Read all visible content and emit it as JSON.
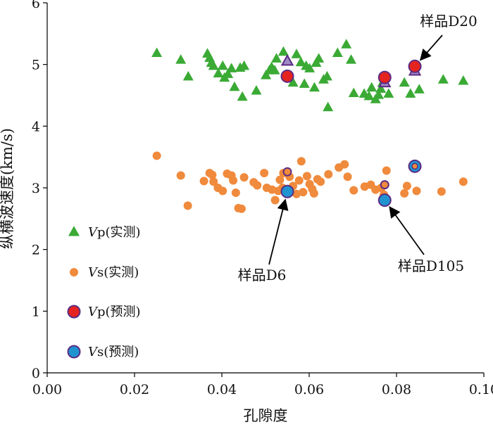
{
  "chart_data": {
    "type": "scatter",
    "xlabel": "孔隙度",
    "ylabel": "纵横波速度(km/s)",
    "xlim": [
      0.0,
      0.1
    ],
    "ylim": [
      0,
      6
    ],
    "x_ticks": [
      "0.00",
      "0.02",
      "0.04",
      "0.06",
      "0.08",
      "0.10"
    ],
    "y_ticks": [
      "0",
      "1",
      "2",
      "3",
      "4",
      "5",
      "6"
    ],
    "grid": false,
    "legend_placement": "bottom-left",
    "series": [
      {
        "name": "Vp(实测)",
        "marker": "triangle",
        "color": "#3aaa35",
        "points": [
          [
            0.0251,
            5.18
          ],
          [
            0.0306,
            5.07
          ],
          [
            0.0323,
            4.8
          ],
          [
            0.0367,
            5.17
          ],
          [
            0.0372,
            5.1
          ],
          [
            0.0376,
            5.02
          ],
          [
            0.0381,
            4.97
          ],
          [
            0.0392,
            4.85
          ],
          [
            0.0402,
            4.97
          ],
          [
            0.0406,
            4.78
          ],
          [
            0.0414,
            4.84
          ],
          [
            0.0422,
            4.93
          ],
          [
            0.0429,
            4.63
          ],
          [
            0.0442,
            4.94
          ],
          [
            0.0447,
            4.47
          ],
          [
            0.0451,
            4.97
          ],
          [
            0.0479,
            4.57
          ],
          [
            0.0501,
            4.82
          ],
          [
            0.0509,
            4.9
          ],
          [
            0.0514,
            4.95
          ],
          [
            0.0521,
            4.9
          ],
          [
            0.0525,
            5.09
          ],
          [
            0.0541,
            5.2
          ],
          [
            0.0551,
            5.06
          ],
          [
            0.0563,
            4.7
          ],
          [
            0.0571,
            5.16
          ],
          [
            0.0581,
            5.03
          ],
          [
            0.0589,
            4.68
          ],
          [
            0.0593,
            4.97
          ],
          [
            0.0601,
            4.93
          ],
          [
            0.0612,
            4.62
          ],
          [
            0.0616,
            5.02
          ],
          [
            0.0622,
            5.09
          ],
          [
            0.0633,
            4.75
          ],
          [
            0.0641,
            4.8
          ],
          [
            0.0643,
            4.3
          ],
          [
            0.0665,
            5.18
          ],
          [
            0.0685,
            5.32
          ],
          [
            0.0696,
            5.07
          ],
          [
            0.0702,
            4.53
          ],
          [
            0.0726,
            4.52
          ],
          [
            0.0737,
            4.48
          ],
          [
            0.0743,
            4.62
          ],
          [
            0.0752,
            4.43
          ],
          [
            0.0759,
            4.5
          ],
          [
            0.0764,
            4.6
          ],
          [
            0.0768,
            4.7
          ],
          [
            0.0782,
            4.52
          ],
          [
            0.0818,
            4.7
          ],
          [
            0.0832,
            4.52
          ],
          [
            0.0852,
            4.59
          ],
          [
            0.0907,
            4.75
          ],
          [
            0.0953,
            4.73
          ]
        ]
      },
      {
        "name": "Vs(实测)",
        "marker": "circle",
        "color": "#f08a3c",
        "points": [
          [
            0.0251,
            3.52
          ],
          [
            0.0306,
            3.2
          ],
          [
            0.0322,
            2.71
          ],
          [
            0.0359,
            3.11
          ],
          [
            0.0372,
            3.24
          ],
          [
            0.0378,
            3.21
          ],
          [
            0.0381,
            3.1
          ],
          [
            0.0391,
            3.0
          ],
          [
            0.0402,
            2.95
          ],
          [
            0.0412,
            3.23
          ],
          [
            0.0422,
            3.2
          ],
          [
            0.0426,
            3.12
          ],
          [
            0.0432,
            2.92
          ],
          [
            0.0438,
            2.67
          ],
          [
            0.0445,
            2.66
          ],
          [
            0.0451,
            3.17
          ],
          [
            0.0473,
            3.09
          ],
          [
            0.0481,
            3.04
          ],
          [
            0.0497,
            3.24
          ],
          [
            0.0503,
            3.0
          ],
          [
            0.0515,
            2.97
          ],
          [
            0.0522,
            2.8
          ],
          [
            0.0529,
            2.95
          ],
          [
            0.0533,
            3.13
          ],
          [
            0.0539,
            3.0
          ],
          [
            0.0541,
            3.24
          ],
          [
            0.0555,
            3.18
          ],
          [
            0.0563,
            3.03
          ],
          [
            0.0571,
            2.9
          ],
          [
            0.0577,
            3.12
          ],
          [
            0.0582,
            3.43
          ],
          [
            0.0586,
            2.93
          ],
          [
            0.0595,
            3.19
          ],
          [
            0.0601,
            3.06
          ],
          [
            0.0607,
            2.98
          ],
          [
            0.0611,
            2.91
          ],
          [
            0.0619,
            3.14
          ],
          [
            0.0626,
            3.1
          ],
          [
            0.0644,
            3.22
          ],
          [
            0.0668,
            3.33
          ],
          [
            0.0681,
            3.38
          ],
          [
            0.0688,
            3.18
          ],
          [
            0.0702,
            2.96
          ],
          [
            0.0727,
            3.02
          ],
          [
            0.0741,
            3.05
          ],
          [
            0.0752,
            2.97
          ],
          [
            0.0765,
            3.0
          ],
          [
            0.0771,
            2.89
          ],
          [
            0.0777,
            3.28
          ],
          [
            0.0818,
            2.91
          ],
          [
            0.0824,
            3.03
          ],
          [
            0.0846,
            2.95
          ],
          [
            0.0903,
            2.94
          ],
          [
            0.0953,
            3.1
          ]
        ]
      },
      {
        "name": "Vp(预测)",
        "marker": "circle-outlined",
        "color": "#e52420",
        "edge": "#5b2c83",
        "points": [
          [
            0.055,
            4.81
          ],
          [
            0.0773,
            4.79
          ],
          [
            0.0842,
            4.97
          ]
        ]
      },
      {
        "name": "Vs(预测)",
        "marker": "circle-outlined",
        "color": "#1f93d0",
        "edge": "#5b2c83",
        "points": [
          [
            0.055,
            2.94
          ],
          [
            0.0773,
            2.8
          ],
          [
            0.0842,
            3.35
          ]
        ]
      }
    ],
    "highlighted_measured": {
      "Vp": [
        [
          0.055,
          5.05
        ],
        [
          0.0773,
          4.7
        ],
        [
          0.0842,
          4.89
        ]
      ],
      "Vs": [
        [
          0.055,
          3.26
        ],
        [
          0.0773,
          3.05
        ],
        [
          0.0842,
          3.35
        ]
      ]
    },
    "annotations": [
      {
        "text": "样品D20",
        "point": [
          0.0842,
          4.97
        ]
      },
      {
        "text": "样品D6",
        "point": [
          0.055,
          2.94
        ]
      },
      {
        "text": "样品D105",
        "point": [
          0.0773,
          2.8
        ]
      }
    ]
  }
}
